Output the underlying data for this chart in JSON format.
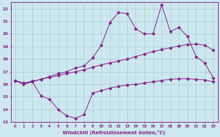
{
  "xlabel": "Windchill (Refroidissement éolien,°C)",
  "xlim": [
    -0.5,
    23.5
  ],
  "ylim": [
    13,
    22.5
  ],
  "yticks": [
    13,
    14,
    15,
    16,
    17,
    18,
    19,
    20,
    21,
    22
  ],
  "xticks": [
    0,
    1,
    2,
    3,
    4,
    5,
    6,
    7,
    8,
    9,
    10,
    11,
    12,
    13,
    14,
    15,
    16,
    17,
    18,
    19,
    20,
    21,
    22,
    23
  ],
  "bg_color": "#cce8ee",
  "grid_color": "#aacccc",
  "line_color": "#882288",
  "series": [
    [
      16.3,
      16.0,
      16.2,
      15.1,
      14.8,
      14.0,
      13.5,
      13.3,
      13.6,
      15.3,
      15.5,
      15.7,
      15.85,
      15.95,
      16.0,
      16.1,
      16.2,
      16.3,
      16.4,
      16.45,
      16.45,
      16.4,
      16.35,
      16.2
    ],
    [
      16.3,
      16.1,
      16.25,
      16.4,
      16.55,
      16.7,
      16.85,
      17.0,
      17.15,
      17.35,
      17.55,
      17.7,
      17.85,
      18.0,
      18.2,
      18.4,
      18.6,
      18.75,
      18.9,
      19.05,
      19.15,
      19.2,
      19.1,
      18.7
    ],
    [
      16.3,
      16.05,
      16.2,
      16.4,
      16.6,
      16.85,
      17.0,
      17.3,
      17.45,
      18.1,
      19.1,
      20.9,
      21.7,
      21.6,
      20.4,
      20.0,
      20.0,
      22.3,
      20.2,
      20.5,
      19.8,
      18.2,
      17.7,
      16.5
    ]
  ]
}
